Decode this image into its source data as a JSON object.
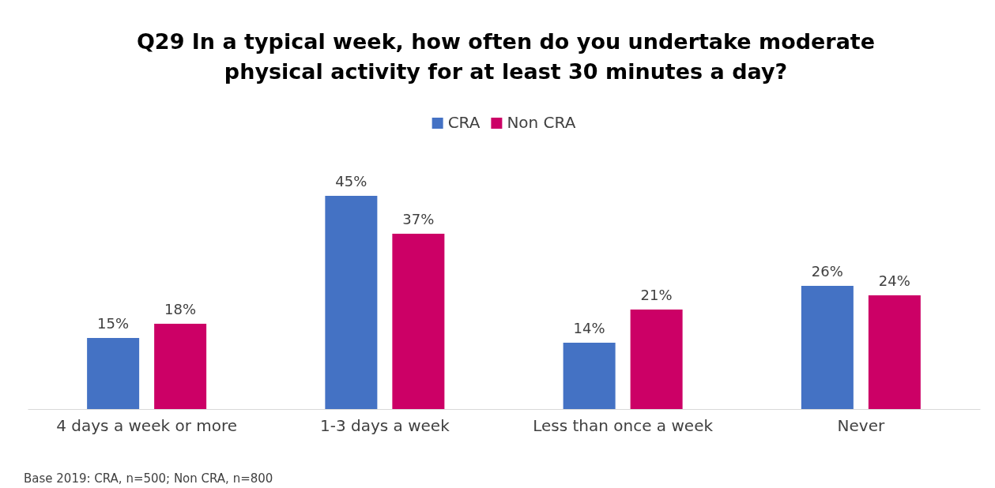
{
  "chart_data": {
    "type": "bar",
    "title": "Q29 In a typical week, how often do you undertake moderate physical activity for at least 30 minutes a day?",
    "categories": [
      "4 days a week or more",
      "1-3 days a week",
      "Less than once a week",
      "Never"
    ],
    "series": [
      {
        "name": "CRA",
        "color": "#4472c4",
        "values": [
          15,
          45,
          14,
          26
        ],
        "value_labels": [
          "15%",
          "45%",
          "14%",
          "26%"
        ]
      },
      {
        "name": "Non CRA",
        "color": "#cc0066",
        "values": [
          18,
          37,
          21,
          24
        ],
        "value_labels": [
          "18%",
          "37%",
          "21%",
          "24%"
        ]
      }
    ],
    "legend": "top",
    "annotations": [
      "Base 2019: CRA, n=500; Non CRA, n=800"
    ]
  }
}
